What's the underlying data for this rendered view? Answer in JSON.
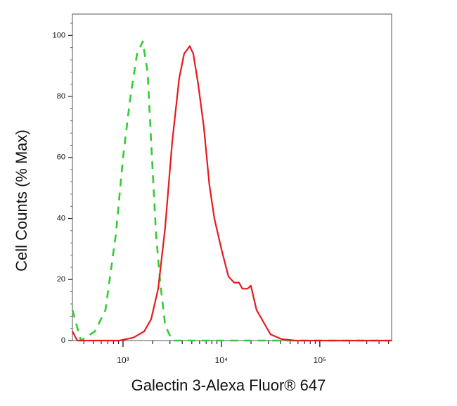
{
  "chart_data": {
    "type": "line",
    "xlabel": "Galectin 3-Alexa Fluor® 647",
    "ylabel": "Cell Counts (% Max)",
    "xscale": "log",
    "xlim": [
      306,
      537000
    ],
    "xticks": [
      {
        "value": 1000,
        "label": "10³"
      },
      {
        "value": 10000,
        "label": "10⁴"
      },
      {
        "value": 100000,
        "label": "10⁵"
      }
    ],
    "ylim": [
      0,
      107
    ],
    "yticks": [
      0,
      20,
      40,
      60,
      80,
      100
    ],
    "series": [
      {
        "color": "#33cc33",
        "dash": "dashed",
        "x": [
          306,
          373,
          518,
          663,
          848,
          1000,
          1179,
          1389,
          1585,
          1778,
          1931,
          2166,
          2391,
          2683,
          3162,
          7800,
          537000
        ],
        "values": [
          10,
          0,
          3,
          10,
          35,
          60,
          79,
          94,
          98,
          88,
          65,
          35,
          19,
          5,
          0,
          0,
          0
        ]
      },
      {
        "color": "#e8191e",
        "dash": "solid",
        "x": [
          306,
          343,
          921,
          1280,
          1638,
          1931,
          2277,
          2683,
          3162,
          3728,
          4178,
          4772,
          5179,
          5810,
          6622,
          7547,
          8483,
          10000,
          11788,
          13460,
          15060,
          16360,
          18400,
          19920,
          22760,
          26830,
          31620,
          40570,
          56230,
          537000
        ],
        "values": [
          3,
          0,
          0,
          1,
          3,
          7,
          17,
          37,
          65,
          86,
          94,
          96.5,
          94,
          84,
          70,
          51,
          40,
          30,
          21,
          19,
          19,
          17,
          17,
          18,
          10,
          6,
          2,
          0.5,
          0,
          0
        ]
      }
    ]
  }
}
